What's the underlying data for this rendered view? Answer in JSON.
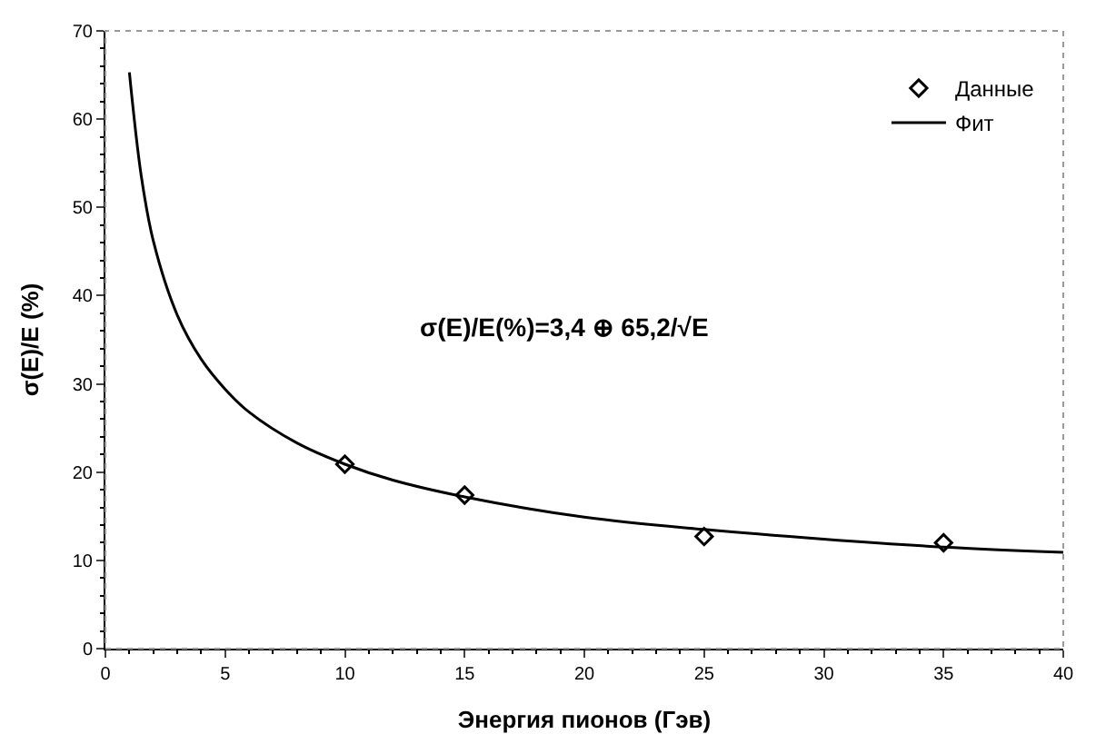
{
  "chart_data": {
    "type": "scatter",
    "xlabel": "Энергия пионов (Гэв)",
    "ylabel": "σ(E)/E (%)",
    "annotations": [
      "σ(E)/E(%)=3,4 ⊕ 65,2/√E"
    ],
    "series": [
      {
        "name": "Данные",
        "marker": "diamond",
        "color": "#000000",
        "x": [
          10,
          15,
          25,
          35
        ],
        "values": [
          20.9,
          17.4,
          12.7,
          12.0
        ]
      },
      {
        "name": "Фит",
        "type": "line",
        "marker": "none",
        "line_style": "solid",
        "color": "#000000",
        "x": [
          1,
          1.5,
          2,
          3,
          4,
          5,
          6,
          8,
          10,
          12,
          15,
          20,
          25,
          30,
          35,
          40
        ],
        "values": [
          65.3,
          53.5,
          46.2,
          37.8,
          32.8,
          29.4,
          26.8,
          23.3,
          20.9,
          19.1,
          17.2,
          14.9,
          13.5,
          12.4,
          11.5,
          10.9
        ]
      }
    ],
    "xlim": [
      0,
      40
    ],
    "xticks": [
      0,
      5,
      10,
      15,
      20,
      25,
      30,
      35,
      40
    ],
    "ylim": [
      0,
      70
    ],
    "yticks": [
      0,
      10,
      20,
      30,
      40,
      50,
      60,
      70
    ],
    "legend": "top right"
  }
}
